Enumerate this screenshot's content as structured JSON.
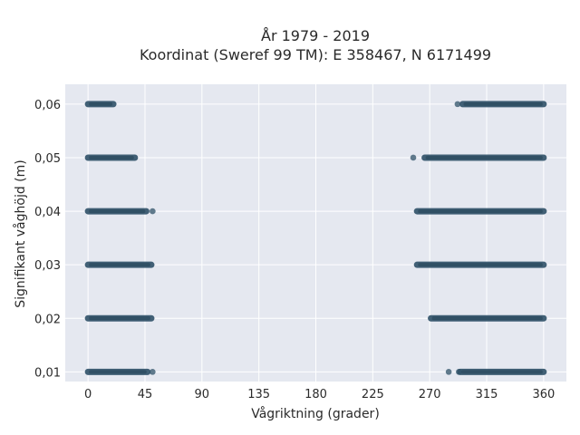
{
  "chart_data": {
    "type": "scatter",
    "title_line1": "År 1979 - 2019",
    "title_line2": "Koordinat (Sweref 99 TM): E 358467, N 6171499",
    "xlabel": "Vågriktning (grader)",
    "ylabel": "Signifikant våghöjd (m)",
    "xlim": [
      -18,
      378
    ],
    "ylim": [
      0.0082,
      0.0637
    ],
    "x_ticks": [
      0,
      45,
      90,
      135,
      180,
      225,
      270,
      315,
      360
    ],
    "x_tick_labels": [
      "0",
      "45",
      "90",
      "135",
      "180",
      "225",
      "270",
      "315",
      "360"
    ],
    "y_ticks": [
      0.01,
      0.02,
      0.03,
      0.04,
      0.05,
      0.06
    ],
    "y_tick_labels": [
      "0,01",
      "0,02",
      "0,03",
      "0,04",
      "0,05",
      "0,06"
    ],
    "grid": true,
    "marker_color": "#2f5168",
    "background_color": "#e5e8f0",
    "bands": [
      {
        "y": 0.06,
        "segments": [
          [
            0,
            20
          ],
          [
            296,
            360
          ]
        ],
        "outliers": [
          292
        ]
      },
      {
        "y": 0.05,
        "segments": [
          [
            0,
            37
          ],
          [
            266,
            360
          ]
        ],
        "outliers": [
          257
        ]
      },
      {
        "y": 0.04,
        "segments": [
          [
            0,
            46
          ],
          [
            260,
            360
          ]
        ],
        "outliers": [
          51
        ]
      },
      {
        "y": 0.03,
        "segments": [
          [
            0,
            50
          ],
          [
            260,
            360
          ]
        ],
        "outliers": []
      },
      {
        "y": 0.02,
        "segments": [
          [
            0,
            50
          ],
          [
            271,
            360
          ]
        ],
        "outliers": []
      },
      {
        "y": 0.01,
        "segments": [
          [
            0,
            47
          ],
          [
            294,
            360
          ]
        ],
        "outliers": [
          51,
          285,
          293
        ]
      }
    ]
  }
}
